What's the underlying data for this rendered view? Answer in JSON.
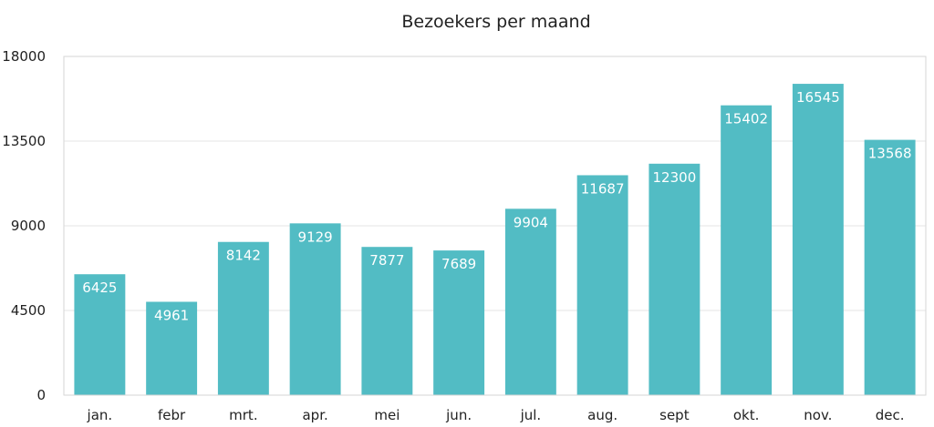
{
  "chart_data": {
    "type": "bar",
    "title": "Bezoekers per maand",
    "xlabel": "",
    "ylabel": "",
    "categories": [
      "jan.",
      "febr",
      "mrt.",
      "apr.",
      "mei",
      "jun.",
      "jul.",
      "aug.",
      "sept",
      "okt.",
      "nov.",
      "dec."
    ],
    "values": [
      6425,
      4961,
      8142,
      9129,
      7877,
      7689,
      9904,
      11687,
      12300,
      15402,
      16545,
      13568
    ],
    "ylim": [
      0,
      18000
    ],
    "yticks": [
      0,
      4500,
      9000,
      13500,
      18000
    ],
    "grid": true,
    "bar_color": "#52bcc4",
    "data_label_color": "#ffffff"
  }
}
